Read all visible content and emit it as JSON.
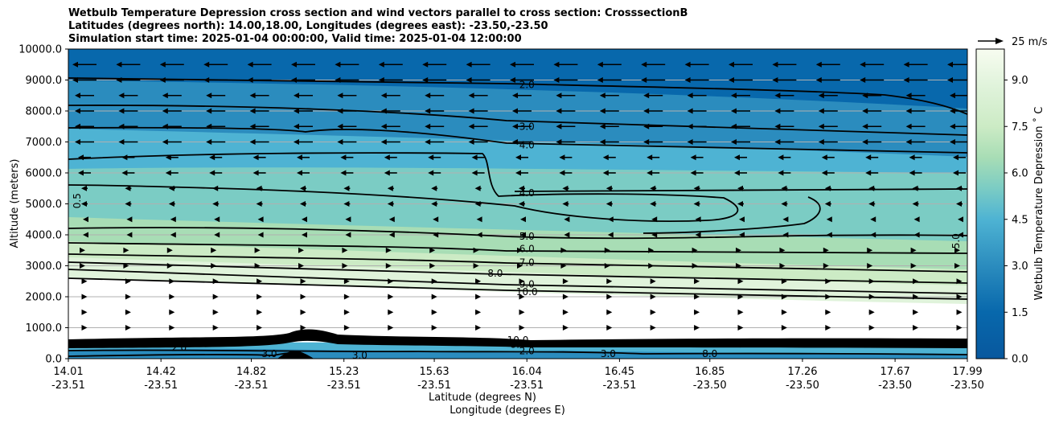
{
  "title_lines": [
    "Wetbulb Temperature Depression cross section and wind vectors parallel to cross section: CrosssectionB",
    "Latitudes (degrees north): 14.00,18.00, Longitudes (degrees east): -23.50,-23.50",
    "Simulation start time: 2025-01-04 00:00:00, Valid time: 2025-01-04 12:00:00"
  ],
  "quiver_key_label": "25 m/s",
  "colorbar_label": "Wetbulb Temperature Depression ˚ C",
  "colors": {
    "fill_stops": [
      "#08589e",
      "#0868ac",
      "#2b8cbe",
      "#4eb3d3",
      "#7bccc4",
      "#a8ddb5",
      "#ccebc5",
      "#e0f3db",
      "#f7fcf0"
    ],
    "contour": "#000000",
    "grid": "#b0b0b0"
  },
  "chart_data": {
    "type": "contourf",
    "xlabel": "Latitude (degrees N)",
    "xlabel2": "Longitude (degrees E)",
    "ylabel": "Altitude (meters)",
    "ylim": [
      0,
      10000
    ],
    "y_ticks": [
      "0.0",
      "1000.0",
      "2000.0",
      "3000.0",
      "4000.0",
      "5000.0",
      "6000.0",
      "7000.0",
      "8000.0",
      "9000.0",
      "10000.0"
    ],
    "x_ticks": [
      {
        "lat": "14.01",
        "lon": "-23.51"
      },
      {
        "lat": "14.42",
        "lon": "-23.51"
      },
      {
        "lat": "14.82",
        "lon": "-23.51"
      },
      {
        "lat": "15.23",
        "lon": "-23.51"
      },
      {
        "lat": "15.63",
        "lon": "-23.51"
      },
      {
        "lat": "16.04",
        "lon": "-23.51"
      },
      {
        "lat": "16.45",
        "lon": "-23.51"
      },
      {
        "lat": "16.85",
        "lon": "-23.50"
      },
      {
        "lat": "17.26",
        "lon": "-23.50"
      },
      {
        "lat": "17.67",
        "lon": "-23.50"
      },
      {
        "lat": "17.99",
        "lon": "-23.50"
      }
    ],
    "colorbar_ticks": [
      "0.0",
      "1.5",
      "3.0",
      "4.5",
      "6.0",
      "7.5",
      "9.0"
    ],
    "colorbar_range": [
      0,
      10
    ],
    "grid": true,
    "contour_labels": [
      {
        "text": "2.0",
        "lat": 16.04,
        "alt": 8850
      },
      {
        "text": "3.0",
        "lat": 16.04,
        "alt": 7500
      },
      {
        "text": "4.0",
        "lat": 16.04,
        "alt": 6900
      },
      {
        "text": "4.0",
        "lat": 16.04,
        "alt": 5350
      },
      {
        "text": "5.0",
        "lat": 16.04,
        "alt": 3950
      },
      {
        "text": "6.0",
        "lat": 16.04,
        "alt": 3550
      },
      {
        "text": "7.0",
        "lat": 16.04,
        "alt": 3100
      },
      {
        "text": "8.0",
        "lat": 15.9,
        "alt": 2750
      },
      {
        "text": "9.0",
        "lat": 16.04,
        "alt": 2400
      },
      {
        "text": "10.0",
        "lat": 16.04,
        "alt": 2150
      },
      {
        "text": "10.0",
        "lat": 16.0,
        "alt": 600
      },
      {
        "text": "8.0",
        "lat": 16.0,
        "alt": 450
      },
      {
        "text": "2.0",
        "lat": 16.04,
        "alt": 250
      },
      {
        "text": "3.0",
        "lat": 14.9,
        "alt": 150
      },
      {
        "text": "3.0",
        "lat": 15.3,
        "alt": 100
      },
      {
        "text": "3.0",
        "lat": 16.4,
        "alt": 150
      },
      {
        "text": "2.0",
        "lat": 14.5,
        "alt": 350
      },
      {
        "text": "8.0",
        "lat": 16.85,
        "alt": 150
      },
      {
        "text": "5.0",
        "lat": 17.94,
        "alt": 3800
      },
      {
        "text": "0.5",
        "lat": 14.05,
        "alt": 5100
      }
    ]
  }
}
